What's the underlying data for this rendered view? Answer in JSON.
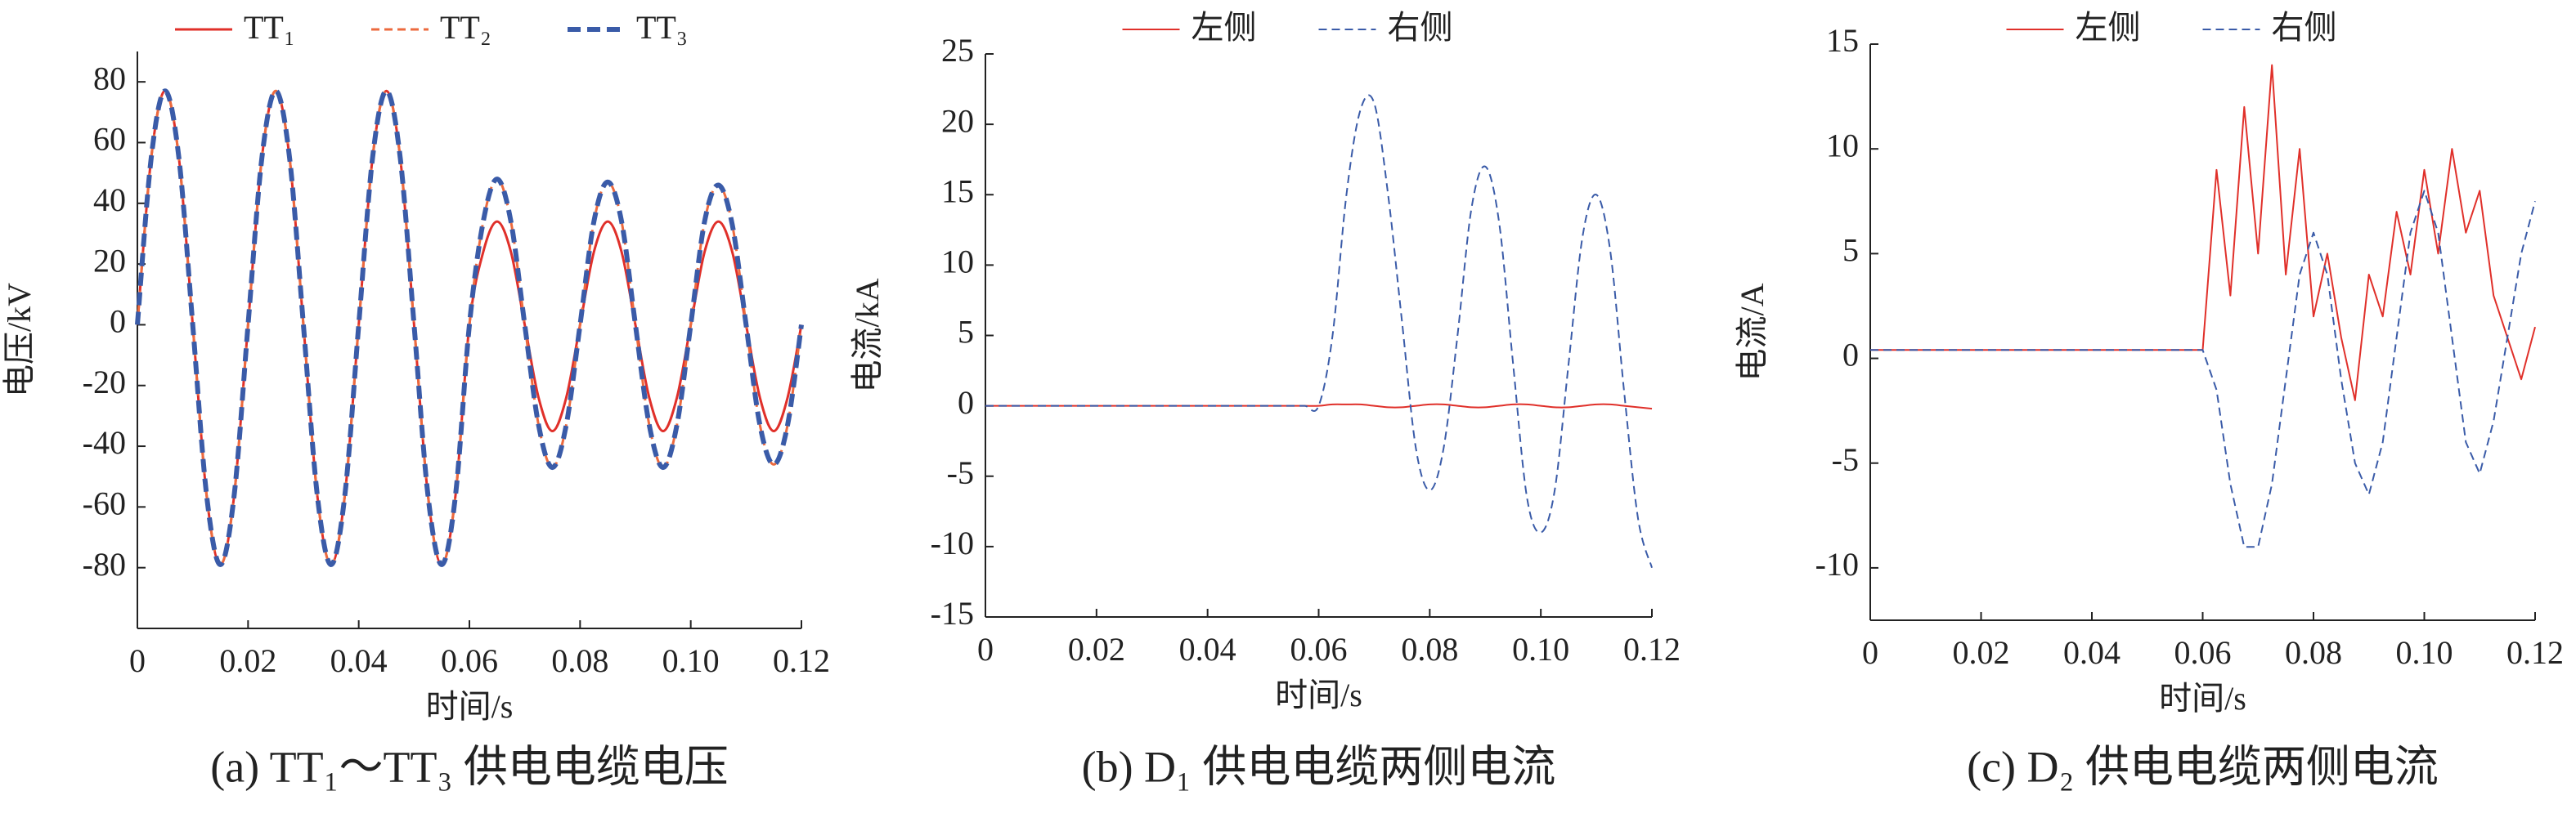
{
  "chart_data": [
    {
      "type": "line",
      "smooth": true,
      "legend": "top",
      "caption": "(a) TT₁～TT₃ 供电电缆电压",
      "xlabel": "时间/s",
      "ylabel": "电压/kV",
      "x": [
        0,
        0.0025,
        0.005,
        0.0075,
        0.01,
        0.0125,
        0.015,
        0.0175,
        0.02,
        0.0225,
        0.025,
        0.0275,
        0.03,
        0.0325,
        0.035,
        0.0375,
        0.04,
        0.0425,
        0.045,
        0.0475,
        0.05,
        0.0525,
        0.055,
        0.0575,
        0.06,
        0.0625,
        0.065,
        0.0675,
        0.07,
        0.0725,
        0.075,
        0.0775,
        0.08,
        0.0825,
        0.085,
        0.0875,
        0.09,
        0.0925,
        0.095,
        0.0975,
        0.1,
        0.1025,
        0.105,
        0.1075,
        0.11,
        0.1125,
        0.115,
        0.1175,
        0.12
      ],
      "xlim": [
        0,
        0.12
      ],
      "xticks": [
        0,
        0.02,
        0.04,
        0.06,
        0.08,
        {
          "value": 0.1,
          "label": "0.10"
        },
        0.12
      ],
      "ylim": [
        -100,
        90
      ],
      "yticks": [
        -80,
        -60,
        -40,
        -20,
        0,
        20,
        40,
        60,
        80
      ],
      "series": [
        {
          "name": "TT₁",
          "color": "#e0302a",
          "dash": "solid",
          "width": 3,
          "values": [
            0,
            55,
            77,
            55,
            0,
            -56,
            -79,
            -56,
            0,
            55,
            77,
            55,
            0,
            -56,
            -79,
            -56,
            0,
            55,
            77,
            55,
            0,
            -56,
            -79,
            -56,
            0,
            24,
            34,
            24,
            0,
            -24,
            -35,
            -24,
            0,
            24,
            34,
            24,
            0,
            -24,
            -35,
            -24,
            0,
            24,
            34,
            24,
            0,
            -24,
            -35,
            -24,
            0
          ]
        },
        {
          "name": "TT₂",
          "color": "#ec6a3e",
          "dash": "dashed",
          "width": 3,
          "values": [
            0,
            55,
            77,
            55,
            0,
            -56,
            -79,
            -56,
            0,
            55,
            77,
            55,
            0,
            -56,
            -79,
            -56,
            0,
            55,
            77,
            55,
            0,
            -56,
            -79,
            -56,
            0,
            34,
            48,
            34,
            0,
            -33,
            -47,
            -33,
            0,
            34,
            47,
            34,
            0,
            -33,
            -47,
            -33,
            0,
            34,
            46,
            33,
            0,
            -33,
            -46,
            -33,
            0
          ]
        },
        {
          "name": "TT₃",
          "color": "#3a5ba8",
          "dash": "dashed",
          "width": 6,
          "values": [
            0,
            55,
            77,
            55,
            0,
            -56,
            -79,
            -56,
            0,
            55,
            77,
            55,
            0,
            -56,
            -79,
            -56,
            0,
            55,
            77,
            55,
            0,
            -56,
            -79,
            -56,
            0,
            34,
            48,
            34,
            0,
            -33,
            -47,
            -33,
            0,
            34,
            47,
            34,
            0,
            -33,
            -47,
            -33,
            0,
            34,
            46,
            33,
            0,
            -33,
            -46,
            -33,
            0
          ]
        }
      ]
    },
    {
      "type": "line",
      "smooth": true,
      "legend": "top",
      "caption": "(b) D₁ 供电电缆两侧电流",
      "xlabel": "时间/s",
      "ylabel": "电流/kA",
      "x": [
        0,
        0.0025,
        0.005,
        0.0075,
        0.01,
        0.0125,
        0.015,
        0.0175,
        0.02,
        0.0225,
        0.025,
        0.0275,
        0.03,
        0.0325,
        0.035,
        0.0375,
        0.04,
        0.0425,
        0.045,
        0.0475,
        0.05,
        0.0525,
        0.055,
        0.0575,
        0.06,
        0.0625,
        0.065,
        0.0675,
        0.07,
        0.0725,
        0.075,
        0.0775,
        0.08,
        0.0825,
        0.085,
        0.0875,
        0.09,
        0.0925,
        0.095,
        0.0975,
        0.1,
        0.1025,
        0.105,
        0.1075,
        0.11,
        0.1125,
        0.115,
        0.1175,
        0.12
      ],
      "xlim": [
        0,
        0.12
      ],
      "xticks": [
        0,
        0.02,
        0.04,
        0.06,
        0.08,
        {
          "value": 0.1,
          "label": "0.10"
        },
        0.12
      ],
      "ylim": [
        -15,
        25
      ],
      "yticks": [
        -15,
        -10,
        -5,
        0,
        5,
        10,
        15,
        20,
        25
      ],
      "series": [
        {
          "name": "左侧",
          "color": "#e0302a",
          "dash": "solid",
          "width": 2,
          "values": [
            0,
            0,
            0,
            0,
            0,
            0,
            0,
            0,
            0,
            0,
            0,
            0,
            0,
            0,
            0,
            0,
            0,
            0,
            0,
            0,
            0,
            0,
            0,
            0,
            0,
            0.1,
            0.1,
            0.1,
            0,
            -0.1,
            -0.1,
            0,
            0.1,
            0.1,
            0,
            -0.1,
            -0.1,
            0,
            0.1,
            0.1,
            0,
            -0.1,
            -0.1,
            0,
            0.1,
            0.1,
            0,
            -0.1,
            -0.2
          ]
        },
        {
          "name": "右侧",
          "color": "#3a5ba8",
          "dash": "dashed",
          "width": 2,
          "values": [
            0,
            0,
            0,
            0,
            0,
            0,
            0,
            0,
            0,
            0,
            0,
            0,
            0,
            0,
            0,
            0,
            0,
            0,
            0,
            0,
            0,
            0,
            0,
            0,
            0,
            5,
            15,
            21,
            21.5,
            15,
            6,
            -3,
            -6,
            -3,
            5,
            14,
            17,
            13,
            3,
            -6.5,
            -9,
            -6,
            3,
            12,
            15,
            11,
            1,
            -8,
            -11.5
          ]
        }
      ]
    },
    {
      "type": "line",
      "smooth": false,
      "legend": "top",
      "caption": "(c) D₂ 供电电缆两侧电流",
      "xlabel": "时间/s",
      "ylabel": "电流/A",
      "x": [
        0,
        0.0025,
        0.005,
        0.0075,
        0.01,
        0.0125,
        0.015,
        0.0175,
        0.02,
        0.0225,
        0.025,
        0.0275,
        0.03,
        0.0325,
        0.035,
        0.0375,
        0.04,
        0.0425,
        0.045,
        0.0475,
        0.05,
        0.0525,
        0.055,
        0.0575,
        0.06,
        0.0625,
        0.065,
        0.0675,
        0.07,
        0.0725,
        0.075,
        0.0775,
        0.08,
        0.0825,
        0.085,
        0.0875,
        0.09,
        0.0925,
        0.095,
        0.0975,
        0.1,
        0.1025,
        0.105,
        0.1075,
        0.11,
        0.1125,
        0.115,
        0.1175,
        0.12
      ],
      "xlim": [
        0,
        0.12
      ],
      "xticks": [
        0,
        0.02,
        0.04,
        0.06,
        0.08,
        {
          "value": 0.1,
          "label": "0.10"
        },
        0.12
      ],
      "ylim": [
        -12.5,
        15
      ],
      "yticks": [
        -10,
        -5,
        0,
        5,
        10,
        15
      ],
      "series": [
        {
          "name": "左侧",
          "color": "#e0302a",
          "dash": "solid",
          "width": 2,
          "values": [
            0.4,
            0.4,
            0.4,
            0.4,
            0.4,
            0.4,
            0.4,
            0.4,
            0.4,
            0.4,
            0.4,
            0.4,
            0.4,
            0.4,
            0.4,
            0.4,
            0.4,
            0.4,
            0.4,
            0.4,
            0.4,
            0.4,
            0.4,
            0.4,
            0.4,
            9,
            3,
            12,
            5,
            14,
            4,
            10,
            2,
            5,
            1,
            -2,
            4,
            2,
            7,
            4,
            9,
            5,
            10,
            6,
            8,
            3,
            1,
            -1,
            1.5
          ]
        },
        {
          "name": "右侧",
          "color": "#3a5ba8",
          "dash": "dashed",
          "width": 2,
          "values": [
            0.4,
            0.4,
            0.4,
            0.4,
            0.4,
            0.4,
            0.4,
            0.4,
            0.4,
            0.4,
            0.4,
            0.4,
            0.4,
            0.4,
            0.4,
            0.4,
            0.4,
            0.4,
            0.4,
            0.4,
            0.4,
            0.4,
            0.4,
            0.4,
            0.4,
            -1.5,
            -6,
            -9,
            -9,
            -6,
            -1,
            4,
            6,
            4,
            -1,
            -5,
            -6.5,
            -4,
            1,
            6,
            8,
            6,
            1,
            -4,
            -5.5,
            -3,
            1,
            5,
            7.5
          ]
        }
      ]
    }
  ]
}
